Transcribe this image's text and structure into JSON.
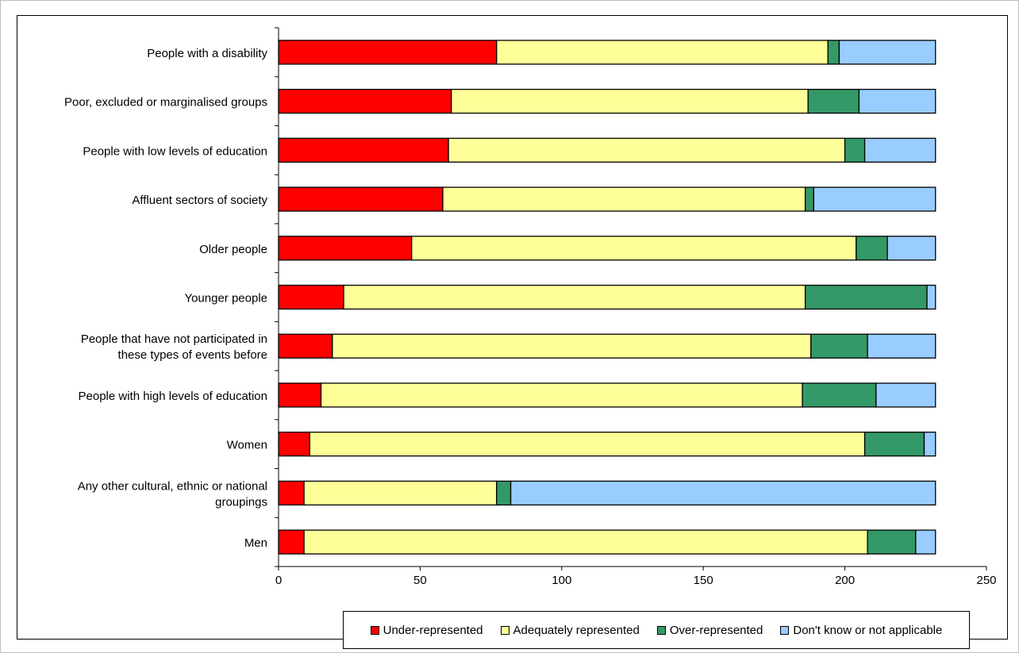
{
  "chart_data": {
    "type": "bar",
    "orientation": "horizontal",
    "stacked": true,
    "categories": [
      [
        "People with a disability"
      ],
      [
        "Poor, excluded or marginalised groups"
      ],
      [
        "People with low levels of education"
      ],
      [
        "Affluent sectors of society"
      ],
      [
        "Older people"
      ],
      [
        "Younger people"
      ],
      [
        "People that have not participated in",
        "these types of events before"
      ],
      [
        "People with high levels of education"
      ],
      [
        "Women"
      ],
      [
        "Any other cultural, ethnic or national",
        "groupings"
      ],
      [
        "Men"
      ]
    ],
    "series": [
      {
        "name": "Under-represented",
        "color": "#ff0000",
        "values": [
          77,
          61,
          60,
          58,
          47,
          23,
          19,
          15,
          11,
          9,
          9
        ]
      },
      {
        "name": "Adequately represented",
        "color": "#ffff99",
        "values": [
          117,
          126,
          140,
          128,
          157,
          163,
          169,
          170,
          196,
          68,
          199
        ]
      },
      {
        "name": "Over-represented",
        "color": "#339966",
        "values": [
          4,
          18,
          7,
          3,
          11,
          43,
          20,
          26,
          21,
          5,
          17
        ]
      },
      {
        "name": "Don't know or not applicable",
        "color": "#99ccff",
        "values": [
          34,
          27,
          25,
          43,
          17,
          3,
          24,
          21,
          4,
          150,
          7
        ]
      }
    ],
    "xlim": [
      0,
      250
    ],
    "xticks": [
      0,
      50,
      100,
      150,
      200,
      250
    ],
    "xlabel": "",
    "ylabel": "",
    "title": "",
    "grid": false,
    "legend_position": "bottom"
  }
}
